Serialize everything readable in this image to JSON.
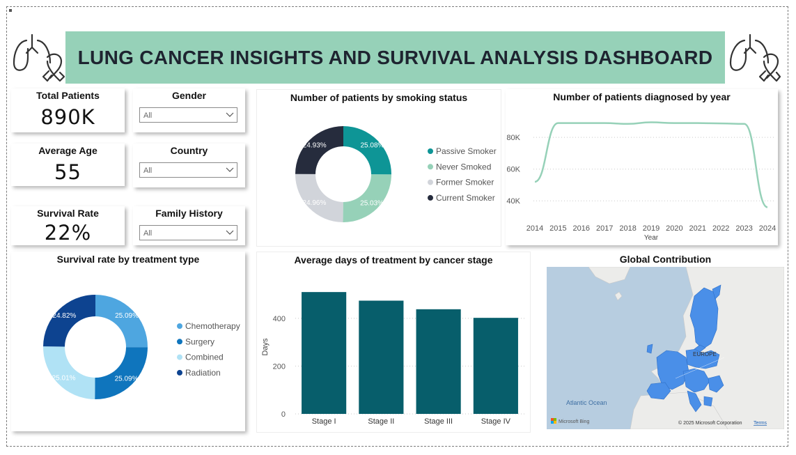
{
  "header": {
    "title": "LUNG CANCER INSIGHTS AND SURVIVAL ANALYSIS DASHBOARD",
    "left_icon": "lungs-ribbon-icon",
    "right_icon": "lungs-ribbon-icon",
    "banner_color": "#96d1b8"
  },
  "kpis": [
    {
      "label": "Total Patients",
      "value": "890K"
    },
    {
      "label": "Average Age",
      "value": "55"
    },
    {
      "label": "Survival Rate",
      "value": "22%"
    }
  ],
  "slicers": [
    {
      "label": "Gender",
      "value": "All"
    },
    {
      "label": "Country",
      "value": "All"
    },
    {
      "label": "Family History",
      "value": "All"
    }
  ],
  "chart_data": [
    {
      "type": "pie",
      "donut": true,
      "title": "Number of patients by smoking status",
      "legend_position": "right",
      "slices": [
        {
          "name": "Passive Smoker",
          "pct": 25.08,
          "label": "25.08%",
          "color": "#0e9596"
        },
        {
          "name": "Never Smoked",
          "pct": 25.03,
          "label": "25.03%",
          "color": "#96d1b8"
        },
        {
          "name": "Former Smoker",
          "pct": 24.96,
          "label": "24.96%",
          "color": "#d1d4da"
        },
        {
          "name": "Current Smoker",
          "pct": 24.93,
          "label": "24.93%",
          "color": "#262c3d"
        }
      ]
    },
    {
      "type": "line",
      "title": "Number of patients diagnosed by year",
      "xlabel": "Year",
      "ylabel": "",
      "x": [
        2014,
        2015,
        2016,
        2017,
        2018,
        2019,
        2020,
        2021,
        2022,
        2023,
        2024
      ],
      "x_tick_labels": [
        "2014",
        "2015",
        "2016",
        "2017",
        "2018",
        "2019",
        "2020",
        "2021",
        "2022",
        "2023",
        "2024"
      ],
      "series": [
        {
          "values": [
            52000,
            89000,
            89000,
            89000,
            88500,
            89500,
            89000,
            89000,
            88800,
            88500,
            36000
          ],
          "color": "#96d1b8"
        }
      ],
      "y_ticks": [
        40000,
        60000,
        80000
      ],
      "y_tick_labels": [
        "40K",
        "60K",
        "80K"
      ],
      "ylim": [
        30000,
        95000
      ],
      "grid": true
    },
    {
      "type": "pie",
      "donut": true,
      "title": "Survival rate by treatment type",
      "legend_position": "right",
      "slices": [
        {
          "name": "Chemotherapy",
          "pct": 25.09,
          "label": "25.09%",
          "color": "#4ea6e0"
        },
        {
          "name": "Surgery",
          "pct": 25.09,
          "label": "25.09%",
          "color": "#0f75bd"
        },
        {
          "name": "Combined",
          "pct": 25.01,
          "label": "25.01%",
          "color": "#b0e2f5"
        },
        {
          "name": "Radiation",
          "pct": 24.82,
          "label": "24.82%",
          "color": "#0d4390"
        }
      ]
    },
    {
      "type": "bar",
      "title": "Average days of treatment by cancer stage",
      "xlabel": "",
      "ylabel": "Days",
      "categories": [
        "Stage I",
        "Stage II",
        "Stage III",
        "Stage IV"
      ],
      "values": [
        510,
        474,
        438,
        402
      ],
      "y_ticks": [
        0,
        200,
        400
      ],
      "y_tick_labels": [
        "0",
        "200",
        "400"
      ],
      "ylim": [
        0,
        560
      ],
      "grid": true,
      "color": "#075e6b"
    }
  ],
  "map": {
    "title": "Global Contribution",
    "region_label": "EUROPE",
    "ocean_label": "Atlantic Ocean",
    "provider": "Microsoft Bing",
    "copyright": "© 2025 Microsoft Corporation",
    "terms": "Terms",
    "highlight_color": "#4a8fe8",
    "water_color": "#b7cde0"
  }
}
